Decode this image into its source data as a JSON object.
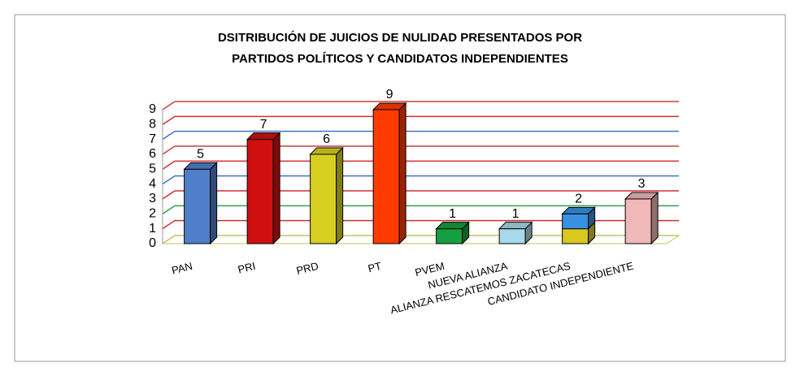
{
  "chart_data": {
    "type": "bar3d",
    "title": [
      "DSITRIBUCIÓN DE JUICIOS DE NULIDAD PRESENTADOS POR",
      "PARTIDOS POLÍTICOS Y CANDIDATOS INDEPENDIENTES"
    ],
    "categories": [
      "PAN",
      "PRI",
      "PRD",
      "PT",
      "PVEM",
      "NUEVA ALIANZA",
      "ALIANZA RESCATEMOS ZACATECAS",
      "CANDIDATO INDEPENDIENTE"
    ],
    "values": [
      5,
      7,
      6,
      9,
      1,
      1,
      2,
      3
    ],
    "colors": [
      "#4f7fc8",
      "#d01010",
      "#d8d020",
      "#ff3a00",
      "#14a040",
      "#a8d8ea",
      [
        "#d8c820",
        "#3a90e0"
      ],
      "#f0b8b8"
    ],
    "ylim": [
      0,
      9
    ],
    "yticks": [
      0,
      1,
      2,
      3,
      4,
      5,
      6,
      7,
      8,
      9
    ],
    "grid": true,
    "grid_colors": [
      "#c8c060",
      "#d03030",
      "#30a050",
      "#d03030",
      "#4070d0",
      "#d03030",
      "#c84040",
      "#4070d0",
      "#d03030",
      "#c84040"
    ]
  }
}
